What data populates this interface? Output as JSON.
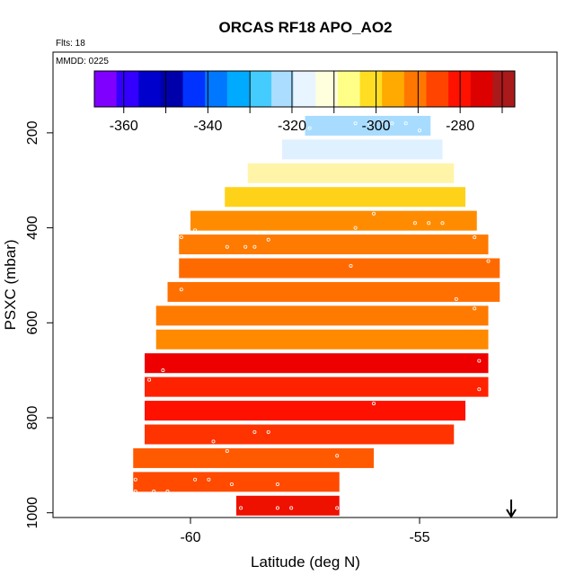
{
  "chart_data": {
    "type": "heatmap",
    "title": "ORCAS RF18 APO_AO2",
    "flights_label": "Flts: 18",
    "date_label": "MMDD: 0225",
    "xlabel": "Latitude (deg N)",
    "ylabel": "PSXC (mbar)",
    "xlim": [
      -63,
      -52
    ],
    "ylim": [
      1010,
      30
    ],
    "x_ticks": [
      -60,
      -55
    ],
    "y_ticks": [
      200,
      400,
      600,
      800,
      1000
    ],
    "colorbar": {
      "range": [
        -367,
        -267
      ],
      "ticks": [
        -360,
        -340,
        -320,
        -300,
        -280
      ],
      "colors": [
        "#7f00ff",
        "#3300ff",
        "#0000cc",
        "#0000aa",
        "#0033ff",
        "#0077ff",
        "#00aaff",
        "#44ccff",
        "#aaddff",
        "#e8f4ff",
        "#ffffdd",
        "#ffff88",
        "#ffdd22",
        "#ffaa00",
        "#ff7700",
        "#ff4400",
        "#ff1100",
        "#dd0000",
        "#aa1a1a"
      ]
    },
    "arrow_marker_latitude": -53.0,
    "rows": [
      {
        "p": 185,
        "x0": -57.5,
        "x1": -54.76,
        "c": "#a8dcff"
      },
      {
        "p": 235,
        "x0": -58.0,
        "x1": -54.5,
        "c": "#dff1ff"
      },
      {
        "p": 285,
        "x0": -58.75,
        "x1": -54.25,
        "c": "#fff4a8"
      },
      {
        "p": 335,
        "x0": -59.25,
        "x1": -54.0,
        "c": "#ffd21a"
      },
      {
        "p": 385,
        "x0": -60.0,
        "x1": -53.75,
        "c": "#ff8c00"
      },
      {
        "p": 435,
        "x0": -60.25,
        "x1": -53.5,
        "c": "#ff7a00"
      },
      {
        "p": 485,
        "x0": -60.25,
        "x1": -53.25,
        "c": "#ff6a00"
      },
      {
        "p": 535,
        "x0": -60.5,
        "x1": -53.25,
        "c": "#ff7000"
      },
      {
        "p": 585,
        "x0": -60.75,
        "x1": -53.5,
        "c": "#ff7a00"
      },
      {
        "p": 635,
        "x0": -60.75,
        "x1": -53.5,
        "c": "#ff8a00"
      },
      {
        "p": 685,
        "x0": -61.0,
        "x1": -53.5,
        "c": "#ee0000"
      },
      {
        "p": 735,
        "x0": -61.0,
        "x1": -53.5,
        "c": "#ff2200"
      },
      {
        "p": 785,
        "x0": -61.0,
        "x1": -54.0,
        "c": "#ff1100"
      },
      {
        "p": 835,
        "x0": -61.0,
        "x1": -54.25,
        "c": "#ff3300"
      },
      {
        "p": 885,
        "x0": -61.25,
        "x1": -56.0,
        "c": "#ff5a00"
      },
      {
        "p": 935,
        "x0": -61.25,
        "x1": -56.75,
        "c": "#ff4a00"
      },
      {
        "p": 985,
        "x0": -59.0,
        "x1": -56.75,
        "c": "#ee1100"
      }
    ],
    "points": [
      [
        -57.4,
        190
      ],
      [
        -56.4,
        180
      ],
      [
        -56.1,
        180
      ],
      [
        -55.8,
        180
      ],
      [
        -55.6,
        180
      ],
      [
        -55.3,
        180
      ],
      [
        -55.0,
        195
      ],
      [
        -60.2,
        420
      ],
      [
        -59.9,
        405
      ],
      [
        -59.2,
        440
      ],
      [
        -58.8,
        440
      ],
      [
        -58.6,
        440
      ],
      [
        -58.3,
        425
      ],
      [
        -56.4,
        400
      ],
      [
        -56.0,
        370
      ],
      [
        -55.1,
        390
      ],
      [
        -54.8,
        390
      ],
      [
        -54.5,
        390
      ],
      [
        -54.3,
        460
      ],
      [
        -53.8,
        420
      ],
      [
        -53.5,
        470
      ],
      [
        -53.2,
        540
      ],
      [
        -54.2,
        550
      ],
      [
        -56.5,
        480
      ],
      [
        -60.5,
        510
      ],
      [
        -60.2,
        530
      ],
      [
        -60.9,
        560
      ],
      [
        -61.0,
        570
      ],
      [
        -53.8,
        570
      ],
      [
        -53.9,
        610
      ],
      [
        -60.8,
        650
      ],
      [
        -60.9,
        720
      ],
      [
        -60.6,
        700
      ],
      [
        -53.7,
        680
      ],
      [
        -53.7,
        740
      ],
      [
        -56.0,
        770
      ],
      [
        -61.3,
        800
      ],
      [
        -61.0,
        860
      ],
      [
        -60.8,
        860
      ],
      [
        -60.5,
        860
      ],
      [
        -59.5,
        850
      ],
      [
        -59.2,
        870
      ],
      [
        -58.6,
        830
      ],
      [
        -58.3,
        830
      ],
      [
        -57.6,
        860
      ],
      [
        -57.3,
        860
      ],
      [
        -57.0,
        860
      ],
      [
        -56.8,
        880
      ],
      [
        -61.6,
        910
      ],
      [
        -61.2,
        930
      ],
      [
        -61.5,
        955
      ],
      [
        -61.2,
        955
      ],
      [
        -60.8,
        955
      ],
      [
        -60.5,
        955
      ],
      [
        -59.9,
        930
      ],
      [
        -59.6,
        930
      ],
      [
        -59.1,
        940
      ],
      [
        -58.9,
        990
      ],
      [
        -58.1,
        990
      ],
      [
        -57.8,
        990
      ],
      [
        -56.8,
        990
      ],
      [
        -56.5,
        990
      ],
      [
        -57.1,
        960
      ],
      [
        -58.1,
        940
      ]
    ]
  }
}
